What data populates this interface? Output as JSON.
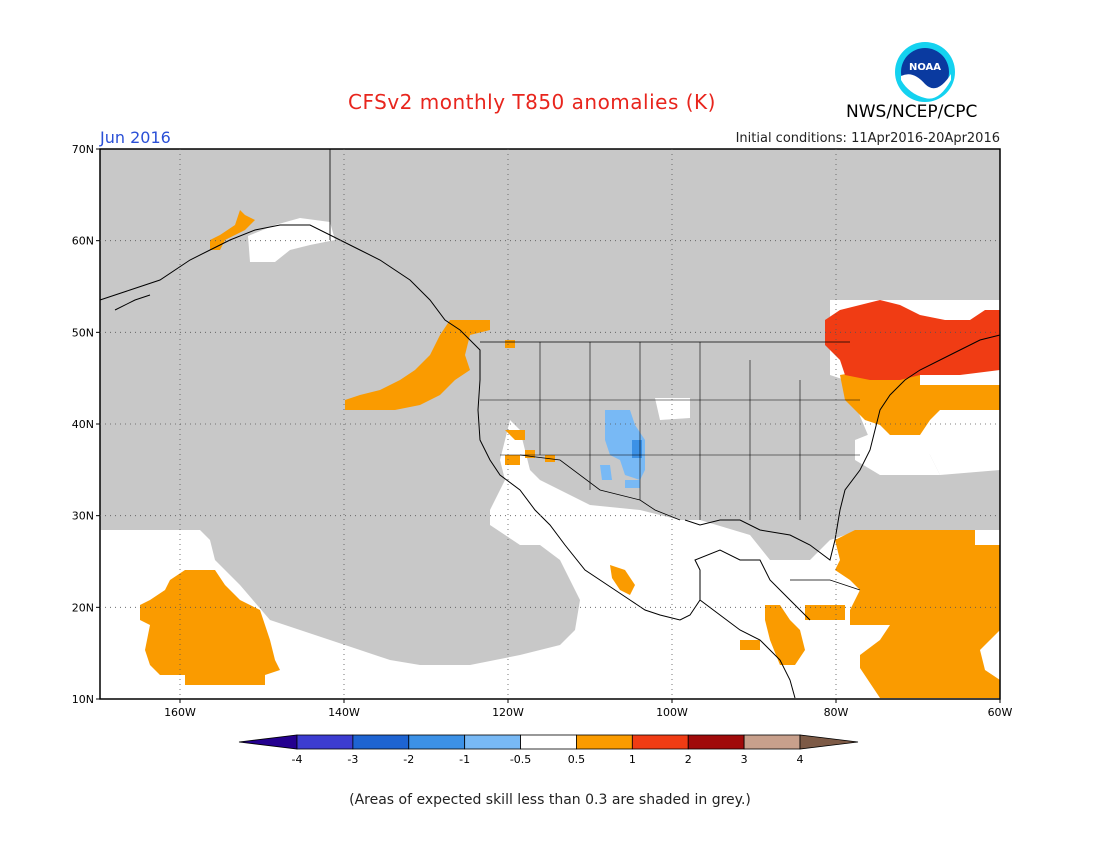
{
  "title": "CFSv2 monthly T850 anomalies (K)",
  "forecast_month": "Jun 2016",
  "initial_conditions": "Initial conditions: 11Apr2016-20Apr2016",
  "agency": "NWS/NCEP/CPC",
  "logo_text": "NOAA",
  "caption": "(Areas of expected skill less than 0.3 are shaded in grey.)",
  "lat_labels": [
    "70N",
    "60N",
    "50N",
    "40N",
    "30N",
    "20N",
    "10N"
  ],
  "lon_labels": [
    "160W",
    "140W",
    "120W",
    "100W",
    "80W",
    "60W"
  ],
  "colorbar": {
    "labels": [
      "-4",
      "-3",
      "-2",
      "-1",
      "-0.5",
      "0.5",
      "1",
      "2",
      "3",
      "4"
    ],
    "colors": [
      "#24008f",
      "#3c3cd0",
      "#1e64d2",
      "#3c91e6",
      "#78b9f5",
      "#ffffff",
      "#fa9b00",
      "#f03c14",
      "#a00a0a",
      "#c8a08c",
      "#7d5a46"
    ]
  },
  "colors": {
    "skill_mask_grey": "#c8c8c8",
    "positive_0_5_to_1": "#fa9b00",
    "positive_1_to_2": "#f03c14",
    "negative_minus1_to_minus0_5": "#78b9f5",
    "neutral": "#ffffff"
  }
}
